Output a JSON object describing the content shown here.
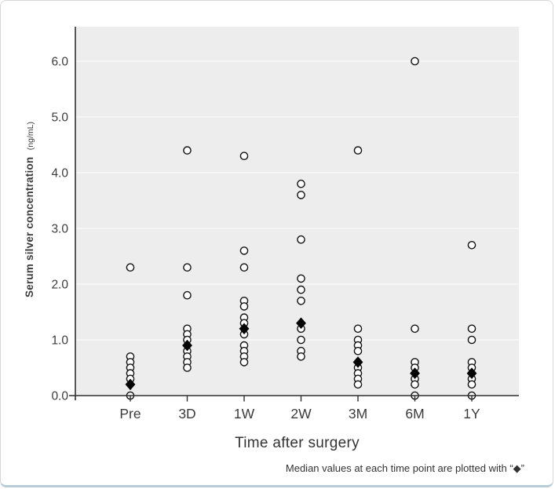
{
  "chart_data": {
    "type": "scatter",
    "title": "",
    "xlabel": "Time after surgery",
    "ylabel": "Serum silver concentration",
    "ylabel_unit": "(ng/mL)",
    "caption": "Median values at each time point are plotted with “◆”",
    "categories": [
      "Pre",
      "3D",
      "1W",
      "2W",
      "3M",
      "6M",
      "1Y"
    ],
    "y_ticks": [
      "0.0",
      "1.0",
      "2.0",
      "3.0",
      "4.0",
      "5.0",
      "6.0"
    ],
    "ylim": [
      0,
      6.6
    ],
    "grid": true,
    "legend_position": "none",
    "series": [
      {
        "name": "individual values",
        "marker": "open-circle",
        "values_by_category": [
          [
            2.3,
            0.7,
            0.6,
            0.5,
            0.4,
            0.3,
            0.0
          ],
          [
            4.4,
            2.3,
            1.8,
            1.2,
            1.1,
            1.0,
            0.8,
            0.7,
            0.6,
            0.5
          ],
          [
            4.3,
            2.6,
            2.3,
            1.7,
            1.6,
            1.4,
            1.3,
            1.1,
            0.9,
            0.8,
            0.7,
            0.6
          ],
          [
            3.8,
            3.6,
            2.8,
            2.1,
            1.9,
            1.7,
            1.2,
            1.0,
            0.8,
            0.7
          ],
          [
            4.4,
            1.2,
            1.0,
            0.9,
            0.8,
            0.5,
            0.4,
            0.3,
            0.2
          ],
          [
            6.0,
            1.2,
            0.6,
            0.5,
            0.3,
            0.2,
            0.0
          ],
          [
            2.7,
            1.2,
            1.0,
            0.6,
            0.5,
            0.3,
            0.2,
            0.0
          ]
        ]
      },
      {
        "name": "median",
        "marker": "filled-diamond",
        "values_by_category": [
          0.2,
          0.9,
          1.2,
          1.3,
          0.6,
          0.4,
          0.4
        ]
      }
    ],
    "colors": {
      "plot_background": "#ededed",
      "gridline": "#fafafa",
      "axis": "#2f2f2f",
      "tick_text": "#3b3b3b",
      "circle_stroke": "#141414",
      "circle_fill": "#ffffff",
      "diamond_fill": "#050505"
    }
  }
}
